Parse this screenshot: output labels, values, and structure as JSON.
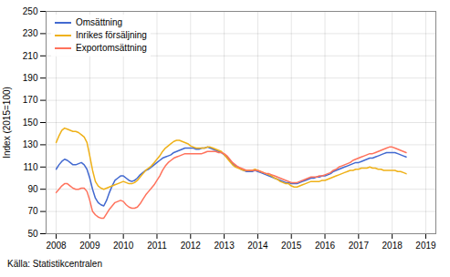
{
  "chart_data": {
    "type": "line",
    "ylabel": "Index (2015=100)",
    "caption": "Källa: Statistikcentralen",
    "xlim": [
      2007.7,
      2019.3
    ],
    "ylim": [
      50,
      250
    ],
    "xticks": [
      2008,
      2009,
      2010,
      2011,
      2012,
      2013,
      2014,
      2015,
      2016,
      2017,
      2018,
      2019
    ],
    "yticks": [
      50,
      70,
      90,
      110,
      130,
      150,
      170,
      190,
      210,
      230,
      250
    ],
    "grid": true,
    "legend": "upper left",
    "x": [
      2008,
      2008.083333333333,
      2008.166666666667,
      2008.25,
      2008.333333333333,
      2008.416666666667,
      2008.5,
      2008.583333333333,
      2008.666666666667,
      2008.75,
      2008.833333333333,
      2008.916666666667,
      2009,
      2009.083333333333,
      2009.166666666667,
      2009.25,
      2009.333333333333,
      2009.416666666667,
      2009.5,
      2009.583333333333,
      2009.666666666667,
      2009.75,
      2009.833333333333,
      2009.916666666667,
      2010,
      2010.083333333333,
      2010.166666666667,
      2010.25,
      2010.333333333333,
      2010.416666666667,
      2010.5,
      2010.583333333333,
      2010.666666666667,
      2010.75,
      2010.833333333333,
      2010.916666666667,
      2011,
      2011.083333333333,
      2011.166666666667,
      2011.25,
      2011.333333333333,
      2011.416666666667,
      2011.5,
      2011.583333333333,
      2011.666666666667,
      2011.75,
      2011.833333333333,
      2011.916666666667,
      2012,
      2012.083333333333,
      2012.166666666667,
      2012.25,
      2012.333333333333,
      2012.416666666667,
      2012.5,
      2012.583333333333,
      2012.666666666667,
      2012.75,
      2012.833333333333,
      2012.916666666667,
      2013,
      2013.083333333333,
      2013.166666666667,
      2013.25,
      2013.333333333333,
      2013.416666666667,
      2013.5,
      2013.583333333333,
      2013.666666666667,
      2013.75,
      2013.833333333333,
      2013.916666666667,
      2014,
      2014.083333333333,
      2014.166666666667,
      2014.25,
      2014.333333333333,
      2014.416666666667,
      2014.5,
      2014.583333333333,
      2014.666666666667,
      2014.75,
      2014.833333333333,
      2014.916666666667,
      2015,
      2015.083333333333,
      2015.166666666667,
      2015.25,
      2015.333333333333,
      2015.416666666667,
      2015.5,
      2015.583333333333,
      2015.666666666667,
      2015.75,
      2015.833333333333,
      2015.916666666667,
      2016,
      2016.083333333333,
      2016.166666666667,
      2016.25,
      2016.333333333333,
      2016.416666666667,
      2016.5,
      2016.583333333333,
      2016.666666666667,
      2016.75,
      2016.833333333333,
      2016.916666666667,
      2017,
      2017.083333333333,
      2017.166666666667,
      2017.25,
      2017.333333333333,
      2017.416666666667,
      2017.5,
      2017.583333333333,
      2017.666666666667,
      2017.75,
      2017.833333333333,
      2017.916666666667,
      2018,
      2018.083333333333,
      2018.166666666667,
      2018.25,
      2018.333333333333,
      2018.416666666667
    ],
    "series": [
      {
        "name": "Omsättning",
        "values": [
          108,
          112,
          115,
          117,
          116,
          114,
          112,
          112,
          113,
          114,
          112,
          108,
          100,
          90,
          82,
          78,
          76,
          75,
          80,
          87,
          93,
          98,
          100,
          102,
          102,
          100,
          98,
          97,
          98,
          100,
          103,
          105,
          107,
          108,
          110,
          112,
          114,
          116,
          118,
          119,
          120,
          121,
          123,
          124,
          125,
          126,
          127,
          127,
          127,
          127,
          126,
          126,
          127,
          127,
          128,
          127,
          126,
          125,
          124,
          123,
          121,
          119,
          116,
          113,
          111,
          110,
          108,
          107,
          106,
          106,
          106,
          107,
          106,
          105,
          104,
          103,
          102,
          101,
          100,
          99,
          98,
          97,
          96,
          96,
          95,
          95,
          95,
          96,
          97,
          98,
          99,
          100,
          100,
          101,
          101,
          102,
          102,
          103,
          104,
          106,
          107,
          108,
          109,
          110,
          111,
          112,
          113,
          114,
          114,
          115,
          116,
          117,
          118,
          118,
          119,
          120,
          121,
          122,
          123,
          123,
          123,
          123,
          122,
          121,
          120,
          119
        ]
      },
      {
        "name": "Inrikes försäljning",
        "values": [
          132,
          138,
          143,
          145,
          144,
          143,
          142,
          142,
          141,
          139,
          137,
          132,
          120,
          107,
          97,
          93,
          91,
          90,
          91,
          92,
          93,
          94,
          95,
          96,
          97,
          96,
          95,
          95,
          96,
          98,
          101,
          104,
          107,
          109,
          111,
          114,
          117,
          120,
          124,
          127,
          129,
          131,
          133,
          134,
          134,
          133,
          132,
          131,
          129,
          128,
          127,
          127,
          127,
          127,
          128,
          128,
          127,
          126,
          125,
          124,
          121,
          118,
          115,
          112,
          110,
          109,
          108,
          107,
          107,
          107,
          107,
          108,
          107,
          106,
          105,
          104,
          103,
          102,
          100,
          99,
          97,
          96,
          95,
          95,
          93,
          92,
          92,
          93,
          94,
          95,
          96,
          97,
          97,
          97,
          97,
          98,
          98,
          99,
          100,
          101,
          102,
          103,
          104,
          105,
          106,
          107,
          107,
          108,
          108,
          109,
          109,
          109,
          110,
          109,
          109,
          108,
          108,
          107,
          107,
          107,
          107,
          107,
          106,
          106,
          105,
          104
        ]
      },
      {
        "name": "Exportomsättning",
        "values": [
          87,
          90,
          93,
          95,
          95,
          93,
          91,
          90,
          90,
          91,
          91,
          88,
          80,
          70,
          67,
          65,
          64,
          64,
          68,
          72,
          75,
          78,
          79,
          80,
          79,
          76,
          74,
          73,
          73,
          74,
          77,
          81,
          85,
          88,
          91,
          94,
          98,
          102,
          107,
          111,
          114,
          116,
          118,
          119,
          120,
          121,
          122,
          122,
          122,
          122,
          122,
          122,
          122,
          123,
          124,
          124,
          124,
          124,
          123,
          123,
          122,
          120,
          117,
          114,
          112,
          110,
          109,
          108,
          107,
          107,
          107,
          107,
          107,
          106,
          105,
          104,
          104,
          103,
          102,
          101,
          100,
          99,
          98,
          97,
          96,
          96,
          96,
          97,
          98,
          99,
          100,
          101,
          101,
          101,
          102,
          102,
          103,
          104,
          105,
          107,
          108,
          110,
          111,
          112,
          113,
          114,
          116,
          117,
          118,
          119,
          120,
          121,
          122,
          122,
          123,
          124,
          125,
          126,
          127,
          128,
          128,
          127,
          126,
          125,
          124,
          123
        ]
      }
    ]
  }
}
